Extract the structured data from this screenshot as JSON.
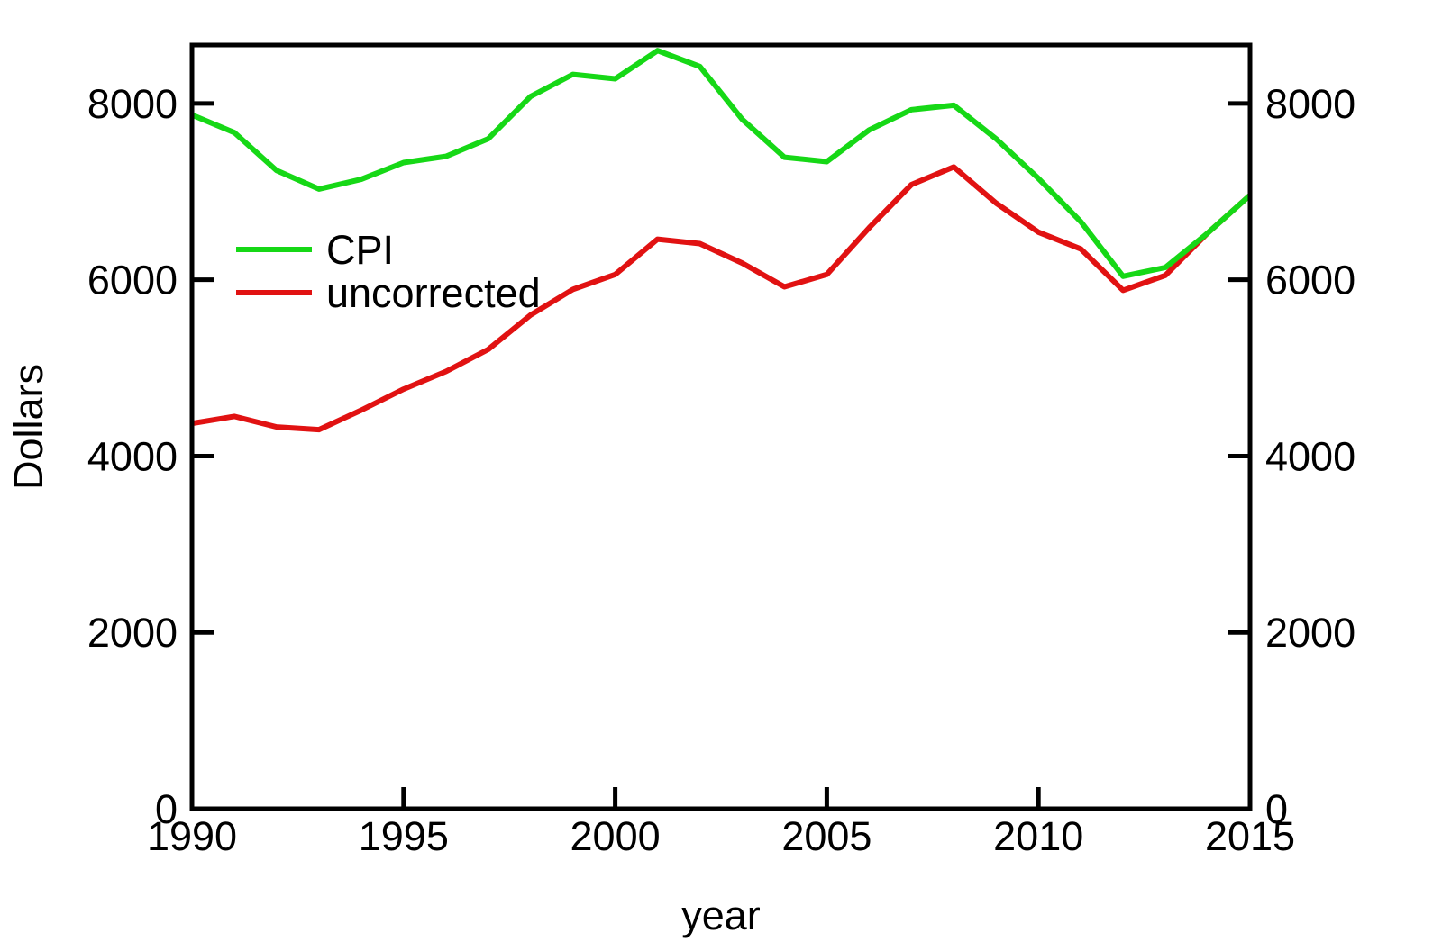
{
  "chart_data": {
    "type": "line",
    "title": "",
    "xlabel": "year",
    "ylabel": "Dollars",
    "x": [
      1990,
      1991,
      1992,
      1993,
      1994,
      1995,
      1996,
      1997,
      1998,
      1999,
      2000,
      2001,
      2002,
      2003,
      2004,
      2005,
      2006,
      2007,
      2008,
      2009,
      2010,
      2011,
      2012,
      2013,
      2014,
      2015
    ],
    "series": [
      {
        "name": "CPI",
        "color": "#16d816",
        "values": [
          7870,
          7670,
          7240,
          7030,
          7140,
          7330,
          7400,
          7600,
          8080,
          8330,
          8280,
          8600,
          8420,
          7820,
          7390,
          7340,
          7700,
          7930,
          7980,
          7600,
          7150,
          6660,
          6040,
          6140,
          6530,
          6960
        ]
      },
      {
        "name": "uncorrected",
        "color": "#e11212",
        "values": [
          4370,
          4450,
          4330,
          4300,
          4520,
          4760,
          4960,
          5210,
          5600,
          5890,
          6060,
          6460,
          6410,
          6190,
          5920,
          6060,
          6590,
          7080,
          7280,
          6870,
          6540,
          6350,
          5880,
          6050,
          6530,
          6960
        ]
      }
    ],
    "x_ticks": [
      1990,
      1995,
      2000,
      2005,
      2010,
      2015
    ],
    "y_ticks": [
      0,
      2000,
      4000,
      6000,
      8000
    ],
    "xlim": [
      1990,
      2015
    ],
    "ylim": [
      0,
      8663
    ],
    "grid": false,
    "frame": "box",
    "y_labels_on_both_sides": true,
    "legend_position": "upper-left-inside",
    "axis_color": "#000000",
    "background_color": "#ffffff"
  }
}
